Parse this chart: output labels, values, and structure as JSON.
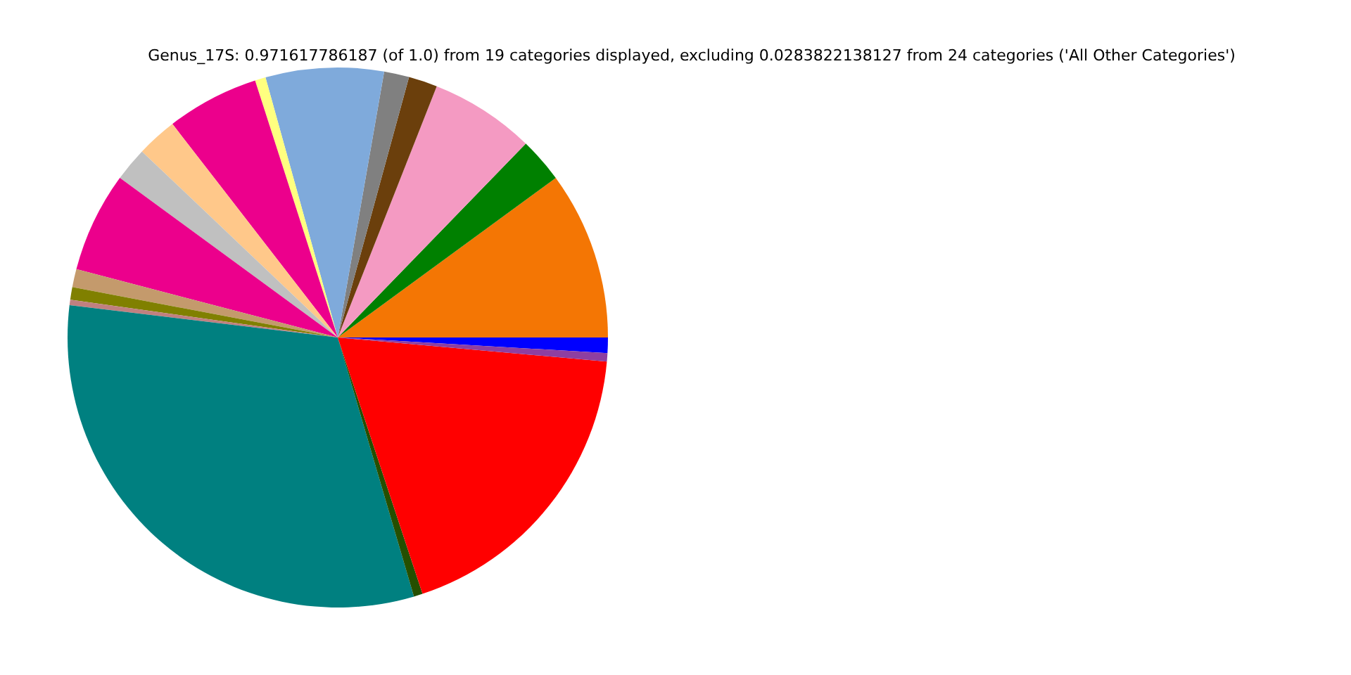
{
  "chart_data": {
    "type": "pie",
    "title": "Genus_17S: 0.971617786187 (of 1.0) from 19 categories displayed, excluding 0.0283822138127 from 24 categories ('All Other Categories')",
    "categories": [
      null,
      null,
      null,
      null,
      null,
      null,
      null,
      null,
      null,
      null,
      null,
      null,
      null,
      null,
      null,
      null,
      null,
      null,
      null
    ],
    "values": [
      0.92,
      10.06,
      2.69,
      6.28,
      1.72,
      1.5,
      7.06,
      0.64,
      5.53,
      2.42,
      2.03,
      6.0,
      1.08,
      0.75,
      0.33,
      31.46,
      0.53,
      18.5,
      0.5
    ],
    "colors": [
      "#0000ff",
      "#f47604",
      "#008000",
      "#f49ac2",
      "#6b3f0c",
      "#808080",
      "#7faadb",
      "#ffff80",
      "#ec008c",
      "#ffc88a",
      "#c0c0c0",
      "#ec008c",
      "#c49a6c",
      "#808000",
      "#c08080",
      "#008080",
      "#254f00",
      "#ff0000",
      "#8e3fa0"
    ],
    "legend": false
  }
}
